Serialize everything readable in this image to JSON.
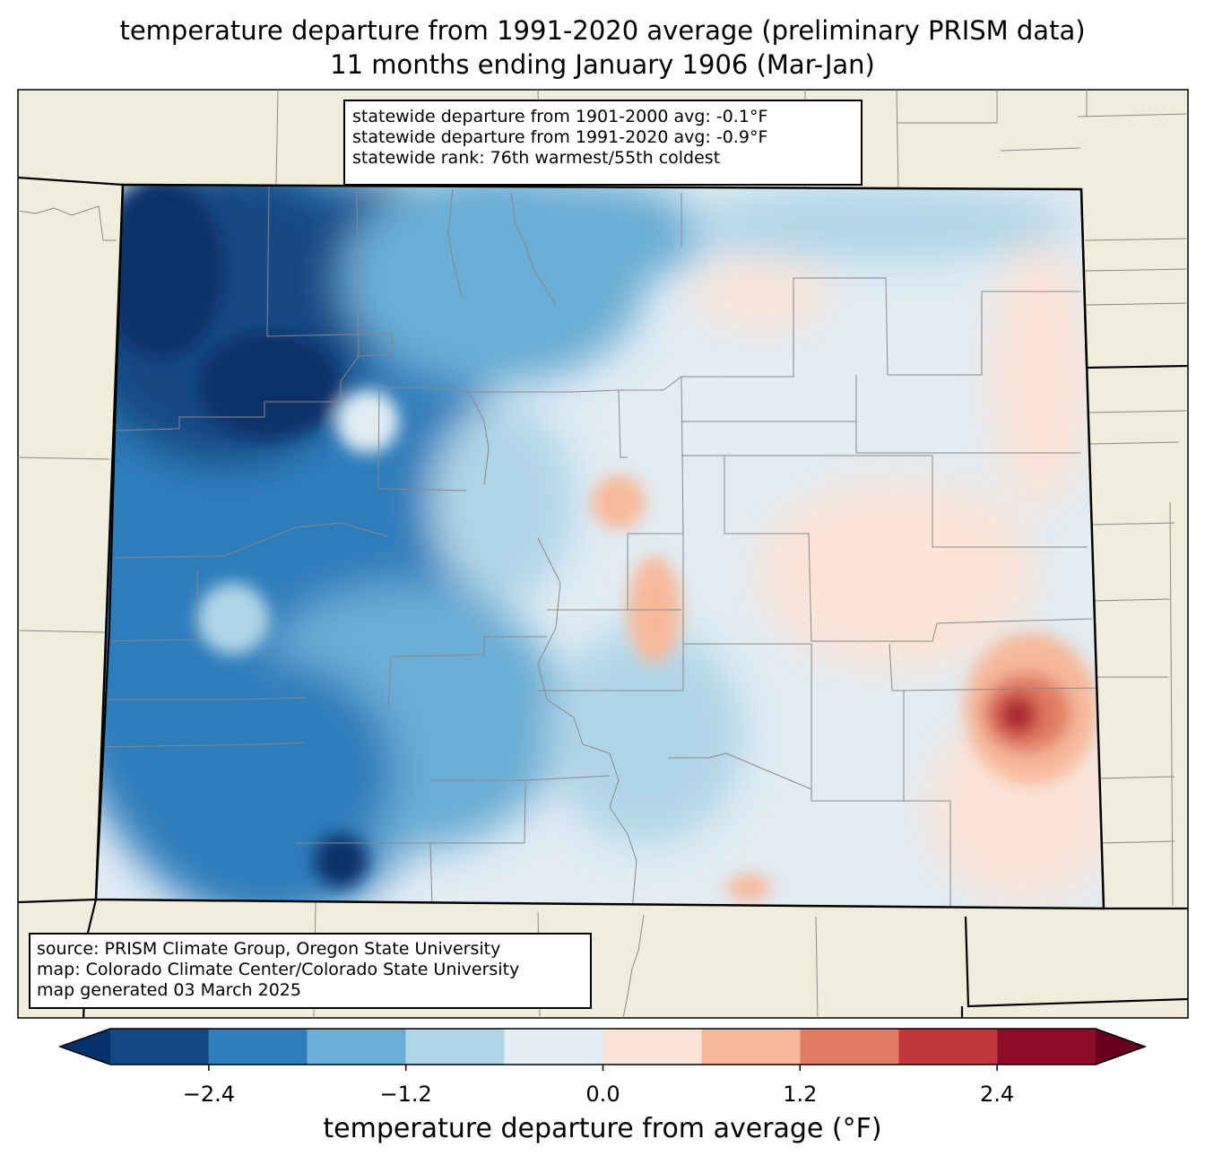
{
  "title": {
    "line1": "temperature departure from 1991-2020 average (preliminary PRISM data)",
    "line2": "11 months ending January 1906 (Mar-Jan)"
  },
  "stats": {
    "line1": "statewide departure from 1901-2000 avg: -0.1°F",
    "line2": "statewide departure from 1991-2020 avg: -0.9°F",
    "line3": "statewide rank: 76th warmest/55th coldest"
  },
  "source": {
    "line1": "source: PRISM Climate Group, Oregon State University",
    "line2": "map: Colorado Climate Center/Colorado State University",
    "line3": "map generated 03 March 2025"
  },
  "colorbar": {
    "label": "temperature departure from average (°F)",
    "ticks": [
      "−2.4",
      "−1.2",
      "0.0",
      "1.2",
      "2.4"
    ],
    "tick_values": [
      -2.4,
      -1.2,
      0.0,
      1.2,
      2.4
    ],
    "range": [
      -3.0,
      3.0
    ],
    "step": 0.6,
    "extend_low_color": "#08306b",
    "extend_high_color": "#67001f",
    "colors": [
      "#124984",
      "#2f7dbb",
      "#6aadd5",
      "#b0d5e7",
      "#e1ecf4",
      "#fae4d8",
      "#f7b99b",
      "#e17d63",
      "#c03a3c",
      "#8e0d26"
    ]
  },
  "colors": {
    "land": "#efeedc",
    "border": "#000000",
    "county": "#888888"
  }
}
